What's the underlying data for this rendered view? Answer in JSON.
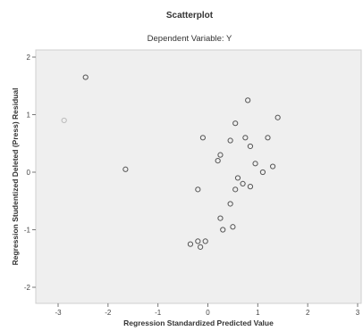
{
  "chart_data": {
    "type": "scatter",
    "title": "Scatterplot",
    "subtitle": "Dependent Variable: Y",
    "xlabel": "Regression Standardized Predicted Value",
    "ylabel": "Regression Studentized Deleted (Press) Residual",
    "xlim": [
      -3.0,
      3.0
    ],
    "ylim": [
      -2.1,
      2.1
    ],
    "x_ticks": [
      "-3",
      "-2",
      "-1",
      "0",
      "1",
      "2",
      "3"
    ],
    "y_ticks": [
      "-2",
      "-1",
      "0",
      "1",
      "2"
    ],
    "grid": false,
    "plot_background": "#efefef",
    "marker_color": "#555555",
    "points": [
      {
        "x": -2.45,
        "y": 1.65
      },
      {
        "x": -2.88,
        "y": 0.9,
        "hollow": true
      },
      {
        "x": -1.65,
        "y": 0.05
      },
      {
        "x": -0.1,
        "y": 0.6
      },
      {
        "x": 0.2,
        "y": 0.2
      },
      {
        "x": 0.25,
        "y": 0.3
      },
      {
        "x": 0.55,
        "y": 0.85
      },
      {
        "x": 0.45,
        "y": 0.55
      },
      {
        "x": 0.85,
        "y": 0.45
      },
      {
        "x": 0.95,
        "y": 0.15
      },
      {
        "x": 1.1,
        "y": 0.0
      },
      {
        "x": 1.3,
        "y": 0.1
      },
      {
        "x": 0.6,
        "y": -0.1
      },
      {
        "x": 0.7,
        "y": -0.2
      },
      {
        "x": 0.85,
        "y": -0.25
      },
      {
        "x": 0.45,
        "y": -0.55
      },
      {
        "x": -0.2,
        "y": -0.3
      },
      {
        "x": 0.55,
        "y": -0.3
      },
      {
        "x": 0.25,
        "y": -0.8
      },
      {
        "x": 0.3,
        "y": -1.0
      },
      {
        "x": 0.5,
        "y": -0.95
      },
      {
        "x": -0.05,
        "y": -1.2
      },
      {
        "x": -0.2,
        "y": -1.2
      },
      {
        "x": -0.35,
        "y": -1.25
      },
      {
        "x": -0.15,
        "y": -1.3
      },
      {
        "x": 0.8,
        "y": 1.25
      },
      {
        "x": 1.4,
        "y": 0.95
      },
      {
        "x": 0.75,
        "y": 0.6
      },
      {
        "x": 1.2,
        "y": 0.6
      }
    ]
  }
}
